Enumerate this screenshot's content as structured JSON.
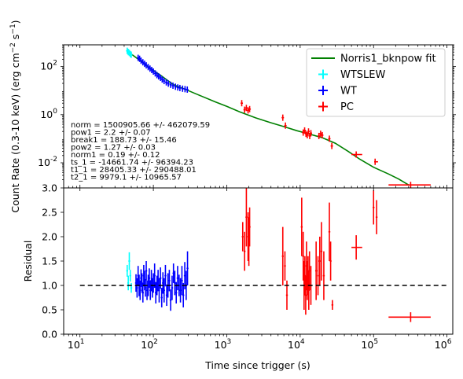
{
  "chart_data": {
    "type": "scatter",
    "xlabel": "Time since trigger (s)",
    "xscale": "log",
    "xlim": [
      6,
      1200000
    ],
    "panels": [
      {
        "name": "flux",
        "ylabel": "Count Rate (0.3-10 keV) (erg cm^-2 s^-1)",
        "yscale": "log",
        "ylim": [
          0.0009,
          800
        ],
        "yticks": [
          0.01,
          1,
          100
        ]
      },
      {
        "name": "residual",
        "ylabel": "Residual",
        "yscale": "linear",
        "ylim": [
          0,
          3
        ],
        "yticks": [
          0.0,
          0.5,
          1.0,
          1.5,
          2.0,
          2.5,
          3.0
        ]
      }
    ],
    "xticks": [
      10,
      100,
      1000,
      10000,
      100000,
      1000000
    ],
    "fit_params": [
      "norm = 1500905.66 +/- 462079.59",
      "pow1 = 2.2 +/- 0.07",
      "break1 = 188.73 +/- 15.46",
      "pow2 = 1.27 +/- 0.03",
      "norm1 = 0.19 +/- 0.12",
      "ts_1 = -14661.74 +/- 96394.23",
      "t1_1 = 28405.33 +/- 290488.01",
      "t2_1 = 9979.1 +/- 10965.57"
    ],
    "legend": [
      {
        "label": "Norris1_bknpow fit",
        "kind": "line",
        "color": "#008000"
      },
      {
        "label": "WTSLEW",
        "kind": "cross",
        "color": "#00ffff"
      },
      {
        "label": "WT",
        "kind": "cross",
        "color": "#0000ff"
      },
      {
        "label": "PC",
        "kind": "cross",
        "color": "#ff0000"
      }
    ],
    "model": {
      "color": "#008000",
      "t": [
        45,
        60,
        80,
        100,
        130,
        160,
        188.7,
        250,
        400,
        700,
        1000,
        1500,
        2500,
        4000,
        6000,
        9000,
        13000,
        20000,
        30000,
        45000,
        65000,
        100000,
        160000,
        220000,
        300000
      ],
      "y": [
        420,
        220,
        115,
        70,
        40,
        25,
        17.5,
        12.6,
        6.9,
        3.4,
        2.2,
        1.31,
        0.73,
        0.46,
        0.32,
        0.215,
        0.16,
        0.11,
        0.065,
        0.03,
        0.014,
        0.0065,
        0.0034,
        0.0021,
        0.0012
      ]
    },
    "series": [
      {
        "name": "WTSLEW",
        "color": "#00ffff",
        "flux": {
          "t": [
            44,
            45.5,
            47,
            48.5,
            50
          ],
          "y": [
            450,
            400,
            370,
            330,
            310
          ]
        },
        "residual": {
          "t": [
            44,
            45.5,
            47,
            48.5,
            50
          ],
          "r": [
            1.3,
            1.05,
            1.5,
            1.2,
            0.95
          ],
          "err": [
            0.12,
            0.15,
            0.18,
            0.12,
            0.1
          ]
        }
      },
      {
        "name": "WT",
        "color": "#0000ff",
        "flux": {
          "t": [
            62,
            65,
            68,
            72,
            76,
            80,
            85,
            90,
            95,
            100,
            106,
            112,
            118,
            125,
            132,
            140,
            150,
            160,
            172,
            185,
            200,
            215,
            230,
            250,
            270,
            290
          ],
          "y": [
            230,
            210,
            175,
            150,
            130,
            112,
            95,
            82,
            72,
            62,
            52,
            44,
            39,
            34,
            29,
            25,
            22,
            19.5,
            17.5,
            16,
            14.5,
            13.5,
            12.8,
            12,
            11.5,
            11
          ]
        },
        "residual": {
          "t": [
            58,
            60,
            62,
            64,
            66,
            68,
            70,
            72,
            74,
            76,
            78,
            80,
            82,
            85,
            88,
            91,
            94,
            97,
            100,
            104,
            108,
            112,
            116,
            120,
            125,
            130,
            135,
            140,
            146,
            152,
            158,
            165,
            172,
            180,
            188,
            196,
            205,
            214,
            224,
            234,
            245,
            256,
            268,
            280,
            292
          ],
          "r": [
            1.05,
            0.95,
            1.2,
            1.0,
            0.9,
            1.15,
            1.05,
            0.85,
            1.2,
            1.1,
            0.95,
            1.3,
            0.9,
            1.0,
            1.15,
            0.9,
            1.1,
            0.95,
            1.05,
            1.2,
            0.85,
            1.0,
            1.1,
            0.9,
            1.15,
            0.75,
            1.05,
            0.9,
            1.2,
            0.8,
            1.0,
            1.1,
            0.7,
            0.95,
            1.25,
            1.05,
            0.85,
            1.15,
            1.0,
            0.9,
            1.1,
            0.8,
            1.2,
            1.0,
            1.35
          ],
          "err": [
            0.18,
            0.2,
            0.2,
            0.22,
            0.2,
            0.18,
            0.2,
            0.2,
            0.22,
            0.2,
            0.18,
            0.2,
            0.2,
            0.22,
            0.2,
            0.2,
            0.22,
            0.2,
            0.2,
            0.25,
            0.22,
            0.2,
            0.22,
            0.25,
            0.22,
            0.2,
            0.22,
            0.25,
            0.22,
            0.22,
            0.25,
            0.22,
            0.22,
            0.25,
            0.2,
            0.25,
            0.22,
            0.25,
            0.22,
            0.25,
            0.3,
            0.25,
            0.28,
            0.3,
            0.35
          ]
        }
      },
      {
        "name": "PC",
        "color": "#ff0000",
        "flux": {
          "t": [
            1600,
            1750,
            1850,
            1950,
            2050,
            5800,
            6300,
            11000,
            11500,
            12000,
            12500,
            13000,
            13500,
            14000,
            18000,
            19000,
            20000,
            25000,
            27000,
            58000,
            105000,
            320000
          ],
          "y": [
            3.0,
            1.6,
            1.9,
            1.5,
            1.7,
            0.75,
            0.35,
            0.18,
            0.22,
            0.16,
            0.14,
            0.2,
            0.13,
            0.17,
            0.13,
            0.16,
            0.14,
            0.1,
            0.05,
            0.022,
            0.011,
            0.0012
          ],
          "xerr_lo": [
            0,
            0,
            0,
            0,
            0,
            0,
            0,
            0,
            0,
            0,
            0,
            0,
            0,
            0,
            0,
            0,
            0,
            0,
            0,
            8000,
            3000,
            160000
          ],
          "xerr_hi": [
            0,
            0,
            0,
            0,
            0,
            0,
            0,
            0,
            0,
            0,
            0,
            0,
            0,
            0,
            0,
            0,
            0,
            0,
            0,
            12000,
            10000,
            280000
          ]
        },
        "residual": {
          "t": [
            1650,
            1750,
            1850,
            1950,
            2000,
            2050,
            5800,
            6200,
            6600,
            10500,
            11000,
            11300,
            11600,
            11900,
            12200,
            12500,
            12800,
            13100,
            13400,
            14000,
            16500,
            17500,
            18500,
            19500,
            21000,
            25000,
            26000,
            27500,
            58000,
            100000,
            110000,
            320000
          ],
          "r": [
            2.0,
            1.7,
            2.4,
            2.0,
            1.9,
            2.2,
            1.6,
            1.4,
            0.8,
            2.2,
            1.6,
            1.0,
            1.2,
            0.8,
            1.4,
            1.1,
            1.2,
            0.9,
            1.3,
            1.0,
            1.3,
            1.2,
            1.5,
            1.7,
            1.2,
            2.1,
            1.5,
            0.6,
            1.78,
            2.6,
            2.4,
            0.35
          ],
          "err": [
            0.3,
            0.4,
            0.6,
            0.5,
            0.5,
            0.4,
            0.6,
            0.3,
            0.3,
            0.6,
            0.5,
            0.5,
            0.4,
            0.4,
            0.5,
            0.4,
            0.4,
            0.4,
            0.4,
            0.4,
            0.6,
            0.4,
            0.5,
            0.6,
            0.5,
            0.6,
            0.4,
            0.1,
            0.25,
            0.35,
            0.35,
            0.1
          ],
          "xerr_lo": [
            0,
            0,
            0,
            0,
            0,
            0,
            0,
            0,
            0,
            0,
            0,
            0,
            0,
            0,
            0,
            0,
            0,
            0,
            0,
            0,
            0,
            0,
            0,
            0,
            0,
            0,
            0,
            0,
            8000,
            0,
            0,
            160000
          ],
          "xerr_hi": [
            0,
            0,
            0,
            0,
            0,
            0,
            0,
            0,
            0,
            0,
            0,
            0,
            0,
            0,
            0,
            0,
            0,
            0,
            0,
            0,
            0,
            0,
            0,
            0,
            0,
            0,
            0,
            0,
            12000,
            0,
            0,
            280000
          ]
        }
      }
    ],
    "reference_line": {
      "y": 1.0,
      "style": "dashed",
      "color": "#000000",
      "t_range": [
        10,
        1000000
      ]
    }
  }
}
